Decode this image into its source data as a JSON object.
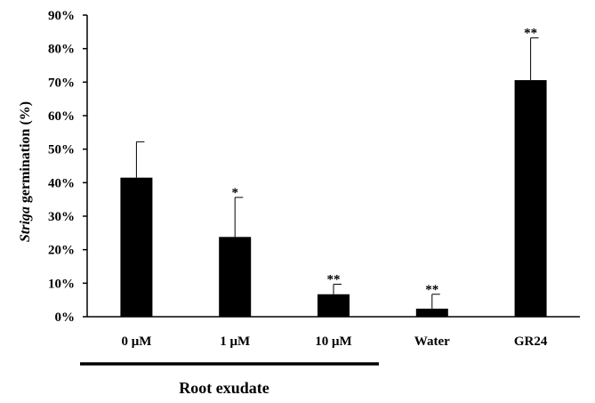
{
  "chart_data": {
    "type": "bar",
    "ylabel_italic": "Striga",
    "ylabel_rest": " germination (%)",
    "categories": [
      "0 μM",
      "1 μM",
      "10 μM",
      "Water",
      "GR24"
    ],
    "values": [
      41.5,
      23.8,
      6.7,
      2.4,
      70.6
    ],
    "error_upper": [
      10.7,
      11.8,
      3.0,
      4.3,
      12.6
    ],
    "significance": [
      "",
      "*",
      "**",
      "**",
      "**"
    ],
    "ylim": [
      0,
      90
    ],
    "yticks": [
      0,
      10,
      20,
      30,
      40,
      50,
      60,
      70,
      80,
      90
    ],
    "ytick_labels": [
      "0%",
      "10%",
      "20%",
      "30%",
      "40%",
      "50%",
      "60%",
      "70%",
      "80%",
      "90%"
    ],
    "group_label": "Root exudate",
    "group_members": [
      "0 μM",
      "1 μM",
      "10 μM"
    ],
    "bar_color": "#000000",
    "grid": false,
    "legend": "none"
  }
}
